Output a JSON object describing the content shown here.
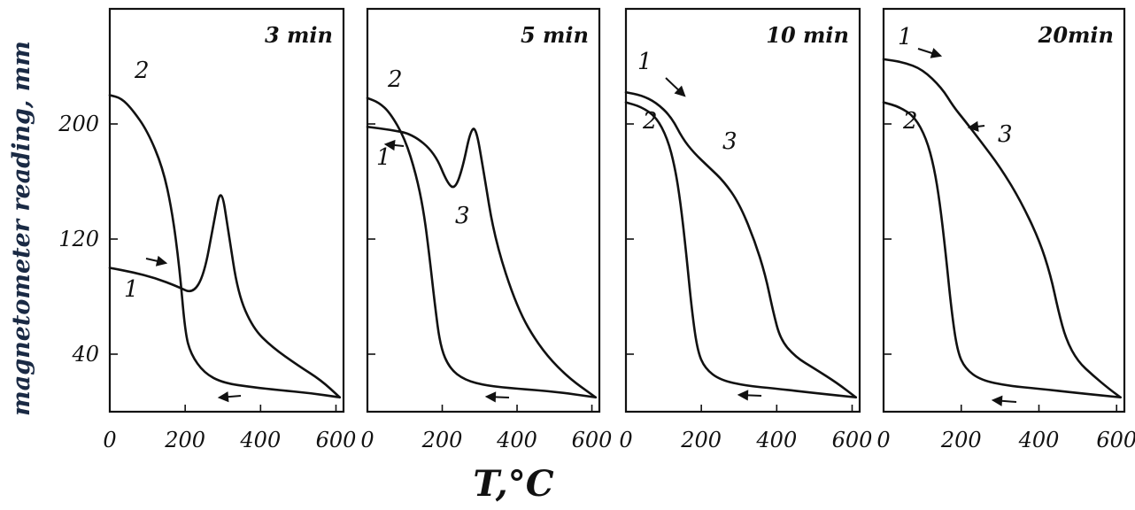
{
  "figure": {
    "ylabel": "magnetometer reading, mm",
    "xlabel": "T,°C"
  },
  "chart_data": [
    {
      "type": "line",
      "title": "3 min",
      "xlabel": "T,°C",
      "ylabel": "magnetometer reading, mm",
      "xlim": [
        0,
        620
      ],
      "ylim": [
        0,
        280
      ],
      "xticks": [
        "0",
        "200",
        "400",
        "600"
      ],
      "yticks": [
        "40",
        "120",
        "200"
      ],
      "series": [
        {
          "name": "1",
          "x": [
            0,
            60,
            120,
            180,
            220,
            250,
            275,
            295,
            315,
            340,
            380,
            430,
            500,
            560,
            610
          ],
          "y": [
            100,
            97,
            93,
            87,
            82,
            95,
            130,
            158,
            125,
            82,
            58,
            45,
            32,
            22,
            10
          ]
        },
        {
          "name": "2",
          "x": [
            0,
            30,
            60,
            100,
            140,
            165,
            185,
            200,
            215,
            250,
            300,
            380,
            450,
            530,
            610
          ],
          "y": [
            220,
            218,
            210,
            195,
            170,
            140,
            100,
            55,
            40,
            27,
            20,
            17,
            15,
            13,
            10
          ]
        }
      ],
      "annotations": [
        "1",
        "2"
      ]
    },
    {
      "type": "line",
      "title": "5 min",
      "xlabel": "T,°C",
      "ylabel": "magnetometer reading, mm",
      "xlim": [
        0,
        620
      ],
      "ylim": [
        0,
        280
      ],
      "xticks": [
        "0",
        "200",
        "400",
        "600"
      ],
      "yticks": [],
      "series": [
        {
          "name": "1",
          "x": [
            0,
            60,
            120,
            180,
            215,
            235,
            255,
            275,
            290,
            310,
            340,
            400,
            460,
            530,
            610
          ],
          "y": [
            198,
            196,
            193,
            180,
            158,
            155,
            170,
            195,
            198,
            168,
            120,
            72,
            45,
            25,
            10
          ]
        },
        {
          "name": "2",
          "x": [
            0,
            30,
            60,
            100,
            130,
            150,
            165,
            180,
            195,
            220,
            260,
            320,
            400,
            500,
            610
          ],
          "y": [
            218,
            215,
            208,
            190,
            165,
            140,
            110,
            75,
            45,
            30,
            22,
            18,
            16,
            14,
            10
          ]
        }
      ],
      "annotations": [
        "1",
        "2",
        "3"
      ]
    },
    {
      "type": "line",
      "title": "10 min",
      "xlabel": "T,°C",
      "ylabel": "magnetometer reading, mm",
      "xlim": [
        0,
        620
      ],
      "ylim": [
        0,
        280
      ],
      "xticks": [
        "0",
        "200",
        "400",
        "600"
      ],
      "yticks": [],
      "series": [
        {
          "name": "1",
          "x": [
            0,
            40,
            80,
            120,
            150,
            180,
            220,
            260,
            300,
            340,
            370,
            390,
            410,
            450,
            500,
            560,
            610
          ],
          "y": [
            222,
            220,
            215,
            205,
            190,
            180,
            170,
            160,
            145,
            120,
            95,
            70,
            50,
            38,
            30,
            20,
            10
          ]
        },
        {
          "name": "2",
          "x": [
            0,
            40,
            80,
            110,
            130,
            145,
            160,
            175,
            190,
            210,
            250,
            320,
            400,
            500,
            610
          ],
          "y": [
            215,
            212,
            205,
            190,
            170,
            145,
            110,
            70,
            42,
            30,
            22,
            18,
            16,
            13,
            10
          ]
        }
      ],
      "annotations": [
        "1",
        "2",
        "3"
      ]
    },
    {
      "type": "line",
      "title": "20min",
      "xlabel": "T,°C",
      "ylabel": "magnetometer reading, mm",
      "xlim": [
        0,
        620
      ],
      "ylim": [
        0,
        280
      ],
      "xticks": [
        "0",
        "200",
        "400",
        "600"
      ],
      "yticks": [],
      "series": [
        {
          "name": "1",
          "x": [
            0,
            50,
            100,
            150,
            180,
            210,
            250,
            300,
            350,
            400,
            430,
            450,
            470,
            500,
            540,
            580,
            610
          ],
          "y": [
            245,
            243,
            238,
            225,
            212,
            202,
            188,
            170,
            148,
            120,
            95,
            70,
            50,
            35,
            25,
            16,
            10
          ]
        },
        {
          "name": "2",
          "x": [
            0,
            40,
            80,
            110,
            130,
            145,
            160,
            175,
            190,
            210,
            250,
            320,
            400,
            500,
            610
          ],
          "y": [
            215,
            212,
            205,
            190,
            170,
            145,
            110,
            70,
            42,
            30,
            22,
            18,
            16,
            13,
            10
          ]
        }
      ],
      "annotations": [
        "1",
        "2",
        "3"
      ]
    }
  ]
}
